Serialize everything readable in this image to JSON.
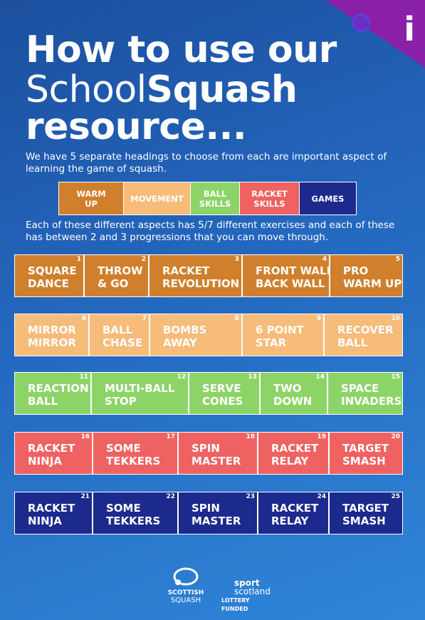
{
  "header": {
    "icon": "i",
    "title_line1": "How to use our",
    "title_line2_light": "School",
    "title_line2_bold": "Squash",
    "title_line3": "resource..."
  },
  "intro": "We have 5 separate headings to choose from each are important aspect of learning the game of squash.",
  "headings": [
    [
      "WARM",
      "UP"
    ],
    [
      "MOVEMENT"
    ],
    [
      "BALL",
      "SKILLS"
    ],
    [
      "RACKET",
      "SKILLS"
    ],
    [
      "GAMES"
    ]
  ],
  "description": "Each of these different aspects has 5/7 different exercises and each of these has between 2 and 3 progressions that you can move through.",
  "rows": [
    [
      {
        "number": 1,
        "label": [
          "SQUARE",
          "DANCE"
        ]
      },
      {
        "number": 2,
        "label": [
          "THROW",
          "& GO"
        ]
      },
      {
        "number": 3,
        "label": [
          "RACKET",
          "REVOLUTION"
        ]
      },
      {
        "number": 4,
        "label": [
          "FRONT WALL",
          "BACK WALL"
        ]
      },
      {
        "number": 5,
        "label": [
          "PRO",
          "WARM UP"
        ]
      }
    ],
    [
      {
        "number": 6,
        "label": [
          "MIRROR",
          "MIRROR"
        ]
      },
      {
        "number": 7,
        "label": [
          "BALL",
          "CHASE"
        ]
      },
      {
        "number": 8,
        "label": [
          "BOMBS",
          "AWAY"
        ]
      },
      {
        "number": 9,
        "label": [
          "6  POINT",
          "STAR"
        ]
      },
      {
        "number": 10,
        "label": [
          "RECOVER",
          "BALL"
        ]
      }
    ],
    [
      {
        "number": 11,
        "label": [
          "REACTION",
          "BALL"
        ]
      },
      {
        "number": 12,
        "label": [
          "MULTI-BALL",
          "STOP"
        ]
      },
      {
        "number": 13,
        "label": [
          "SERVE",
          "CONES"
        ]
      },
      {
        "number": 14,
        "label": [
          "TWO",
          "DOWN"
        ]
      },
      {
        "number": 15,
        "label": [
          "SPACE",
          "INVADERS"
        ]
      }
    ],
    [
      {
        "number": 16,
        "label": [
          "RACKET",
          "NINJA"
        ]
      },
      {
        "number": 17,
        "label": [
          "SOME",
          "TEKKERS"
        ]
      },
      {
        "number": 18,
        "label": [
          "SPIN",
          "MASTER"
        ]
      },
      {
        "number": 19,
        "label": [
          "RACKET",
          "RELAY"
        ]
      },
      {
        "number": 20,
        "label": [
          "TARGET",
          "SMASH"
        ]
      }
    ],
    [
      {
        "number": 21,
        "label": [
          "RACKET",
          "NINJA"
        ]
      },
      {
        "number": 22,
        "label": [
          "SOME",
          "TEKKERS"
        ]
      },
      {
        "number": 23,
        "label": [
          "SPIN",
          "MASTER"
        ]
      },
      {
        "number": 24,
        "label": [
          "RACKET",
          "RELAY"
        ]
      },
      {
        "number": 25,
        "label": [
          "TARGET",
          "SMASH"
        ]
      }
    ]
  ],
  "footer": {
    "logo1_line1": "SCOTTISH",
    "logo1_line2": "SQUASH",
    "logo2_line1": "sport",
    "logo2_line2": "scotland",
    "logo2_line3": "LOTTERY FUNDED"
  }
}
